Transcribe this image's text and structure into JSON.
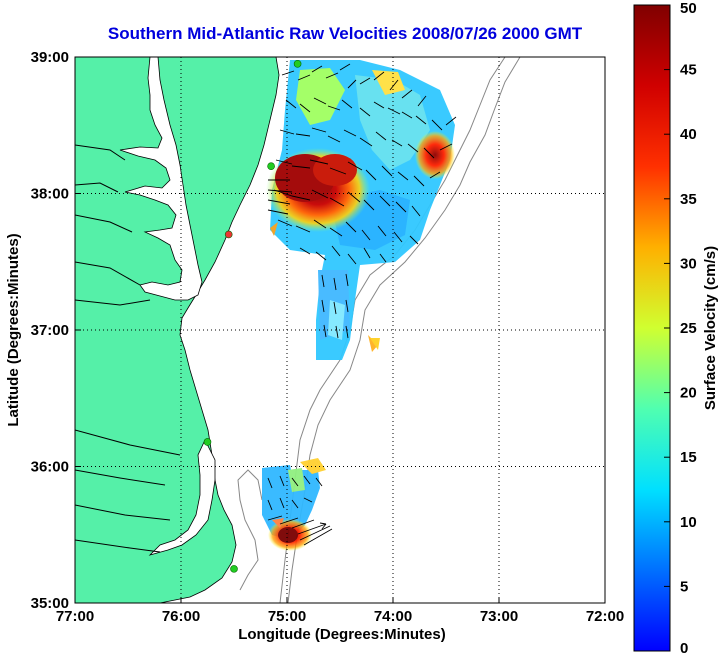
{
  "map": {
    "title": "Southern Mid-Atlantic Raw Velocities 2008/07/26 2000 GMT",
    "xlabel": "Longitude (Degrees:Minutes)",
    "ylabel": "Latitude (Degrees:Minutes)",
    "x_ticks": [
      "77:00",
      "76:00",
      "75:00",
      "74:00",
      "73:00",
      "72:00"
    ],
    "y_ticks": [
      "39:00",
      "38:00",
      "37:00",
      "36:00",
      "35:00"
    ],
    "x_tick_values": [
      -77,
      -76,
      -75,
      -74,
      -73,
      -72
    ],
    "y_tick_values": [
      39,
      38,
      37,
      36,
      35
    ],
    "xlim": [
      -77,
      -72
    ],
    "ylim": [
      35,
      39
    ],
    "grid": "dotted",
    "land_color": "#55f0a8",
    "water_color": "#ffffff",
    "stations": [
      {
        "lon": -74.9,
        "lat": 38.95,
        "color": "#22cc22"
      },
      {
        "lon": -75.15,
        "lat": 38.2,
        "color": "#22cc22"
      },
      {
        "lon": -75.55,
        "lat": 37.7,
        "color": "#ee3333"
      },
      {
        "lon": -75.75,
        "lat": 36.18,
        "color": "#22cc22"
      },
      {
        "lon": -75.5,
        "lat": 35.25,
        "color": "#22cc22"
      }
    ]
  },
  "colorbar": {
    "label": "Surface Velocity (cm/s)",
    "min": 0,
    "max": 50,
    "ticks": [
      "0",
      "5",
      "10",
      "15",
      "20",
      "25",
      "30",
      "35",
      "40",
      "45",
      "50"
    ],
    "colormap": [
      "#0000ff",
      "#00ffff",
      "#ffff00",
      "#ff0000",
      "#800000"
    ]
  }
}
